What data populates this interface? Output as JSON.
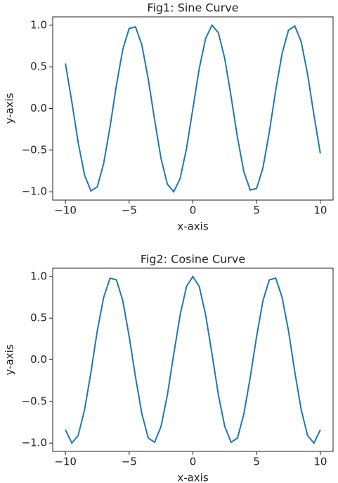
{
  "chart_data": [
    {
      "type": "line",
      "title": "Fig1: Sine Curve",
      "xlabel": "x-axis",
      "ylabel": "y-axis",
      "color": "#1f77b4",
      "x": [
        -10,
        -9.5,
        -9,
        -8.5,
        -8,
        -7.5,
        -7,
        -6.5,
        -6,
        -5.5,
        -5,
        -4.5,
        -4,
        -3.5,
        -3,
        -2.5,
        -2,
        -1.5,
        -1,
        -0.5,
        0,
        0.5,
        1,
        1.5,
        2,
        2.5,
        3,
        3.5,
        4,
        4.5,
        5,
        5.5,
        6,
        6.5,
        7,
        7.5,
        8,
        8.5,
        9,
        9.5,
        10
      ],
      "values": [
        0.54,
        0.08,
        -0.41,
        -0.8,
        -0.99,
        -0.94,
        -0.66,
        -0.22,
        0.28,
        0.71,
        0.96,
        0.98,
        0.76,
        0.35,
        -0.14,
        -0.6,
        -0.91,
        -1.0,
        -0.84,
        -0.48,
        0,
        0.48,
        0.84,
        1.0,
        0.91,
        0.6,
        0.14,
        -0.35,
        -0.76,
        -0.98,
        -0.96,
        -0.71,
        -0.28,
        0.22,
        0.66,
        0.94,
        0.99,
        0.8,
        0.41,
        -0.08,
        -0.54
      ],
      "xlim": [
        -11,
        11
      ],
      "ylim": [
        -1.1,
        1.1
      ],
      "xticks": [
        {
          "value": -10,
          "label": "−10"
        },
        {
          "value": -5,
          "label": "−5"
        },
        0,
        5,
        10
      ],
      "yticks": [
        {
          "value": -1,
          "label": "−1.0"
        },
        {
          "value": -0.5,
          "label": "−0.5"
        },
        {
          "value": 0,
          "label": "0.0"
        },
        0.5,
        {
          "value": 1,
          "label": "1.0"
        }
      ]
    },
    {
      "type": "line",
      "title": "Fig2: Cosine Curve",
      "xlabel": "x-axis",
      "ylabel": "y-axis",
      "color": "#1f77b4",
      "x": [
        -10,
        -9.5,
        -9,
        -8.5,
        -8,
        -7.5,
        -7,
        -6.5,
        -6,
        -5.5,
        -5,
        -4.5,
        -4,
        -3.5,
        -3,
        -2.5,
        -2,
        -1.5,
        -1,
        -0.5,
        0,
        0.5,
        1,
        1.5,
        2,
        2.5,
        3,
        3.5,
        4,
        4.5,
        5,
        5.5,
        6,
        6.5,
        7,
        7.5,
        8,
        8.5,
        9,
        9.5,
        10
      ],
      "values": [
        -0.84,
        -1.0,
        -0.91,
        -0.6,
        -0.15,
        0.35,
        0.75,
        0.98,
        0.96,
        0.71,
        0.28,
        -0.21,
        -0.65,
        -0.94,
        -0.99,
        -0.8,
        -0.42,
        0.07,
        0.54,
        0.88,
        1,
        0.88,
        0.54,
        0.07,
        -0.42,
        -0.8,
        -0.99,
        -0.94,
        -0.65,
        -0.21,
        0.28,
        0.71,
        0.96,
        0.98,
        0.75,
        0.35,
        -0.15,
        -0.6,
        -0.91,
        -1.0,
        -0.84
      ],
      "xlim": [
        -11,
        11
      ],
      "ylim": [
        -1.1,
        1.1
      ],
      "xticks": [
        {
          "value": -10,
          "label": "−10"
        },
        {
          "value": -5,
          "label": "−5"
        },
        0,
        5,
        10
      ],
      "yticks": [
        {
          "value": -1,
          "label": "−1.0"
        },
        {
          "value": -0.5,
          "label": "−0.5"
        },
        {
          "value": 0,
          "label": "0.0"
        },
        0.5,
        {
          "value": 1,
          "label": "1.0"
        }
      ]
    }
  ]
}
